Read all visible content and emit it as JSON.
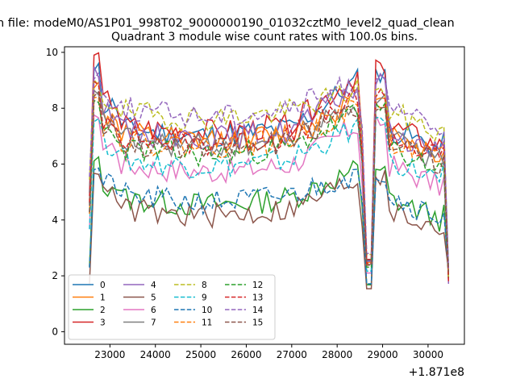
{
  "chart_data": {
    "type": "line",
    "suptitle": "n file: modeM0/AS1P01_998T02_9000000190_01032cztM0_level2_quad_clean",
    "title": "Quadrant 3 module wise count rates with 100.0s bins.",
    "xlabel": "",
    "ylabel": "",
    "x_offset_label": "+1.871e8",
    "xlim": [
      22000,
      30800
    ],
    "ylim": [
      -0.45,
      10.2
    ],
    "x_start": 22550,
    "x_step": 100,
    "n_points": 80,
    "xticks": [
      23000,
      24000,
      25000,
      26000,
      27000,
      28000,
      29000,
      30000
    ],
    "xtick_labels": [
      "23000",
      "24000",
      "25000",
      "26000",
      "27000",
      "28000",
      "29000",
      "30000"
    ],
    "yticks": [
      0,
      2,
      4,
      6,
      8,
      10
    ],
    "ytick_labels": [
      "0",
      "2",
      "4",
      "6",
      "8",
      "10"
    ],
    "grid": false,
    "legend": {
      "position": "lower-left",
      "ncol": 4
    },
    "series": [
      {
        "name": "0",
        "color": "#1f77b4",
        "dash": "solid",
        "base": 7.3,
        "peak": 9.5,
        "seed": 11
      },
      {
        "name": "1",
        "color": "#ff7f0e",
        "dash": "solid",
        "base": 7.1,
        "peak": 8.8,
        "seed": 12
      },
      {
        "name": "2",
        "color": "#2ca02c",
        "dash": "solid",
        "base": 4.8,
        "peak": 6.1,
        "seed": 13
      },
      {
        "name": "3",
        "color": "#d62728",
        "dash": "solid",
        "base": 7.4,
        "peak": 9.8,
        "seed": 14
      },
      {
        "name": "4",
        "color": "#9467bd",
        "dash": "solid",
        "base": 7.2,
        "peak": 9.3,
        "seed": 15
      },
      {
        "name": "5",
        "color": "#8c564b",
        "dash": "solid",
        "base": 4.4,
        "peak": 5.8,
        "seed": 16
      },
      {
        "name": "6",
        "color": "#e377c2",
        "dash": "solid",
        "base": 6.0,
        "peak": 7.8,
        "seed": 17
      },
      {
        "name": "7",
        "color": "#7f7f7f",
        "dash": "solid",
        "base": 6.9,
        "peak": 8.6,
        "seed": 18
      },
      {
        "name": "8",
        "color": "#bcbd22",
        "dash": "dashed",
        "base": 7.9,
        "peak": 8.9,
        "seed": 19
      },
      {
        "name": "9",
        "color": "#17becf",
        "dash": "dashed",
        "base": 6.2,
        "peak": 7.7,
        "seed": 20
      },
      {
        "name": "10",
        "color": "#1f77b4",
        "dash": "dashed",
        "base": 4.9,
        "peak": 5.9,
        "seed": 21
      },
      {
        "name": "11",
        "color": "#ff7f0e",
        "dash": "dashed",
        "base": 6.9,
        "peak": 8.4,
        "seed": 22
      },
      {
        "name": "12",
        "color": "#2ca02c",
        "dash": "dashed",
        "base": 6.6,
        "peak": 8.2,
        "seed": 23
      },
      {
        "name": "13",
        "color": "#d62728",
        "dash": "dashed",
        "base": 7.0,
        "peak": 8.8,
        "seed": 24
      },
      {
        "name": "14",
        "color": "#9467bd",
        "dash": "dashed",
        "base": 8.0,
        "peak": 9.2,
        "seed": 25
      },
      {
        "name": "15",
        "color": "#8c564b",
        "dash": "dashed",
        "base": 6.8,
        "peak": 8.5,
        "seed": 26
      }
    ]
  }
}
